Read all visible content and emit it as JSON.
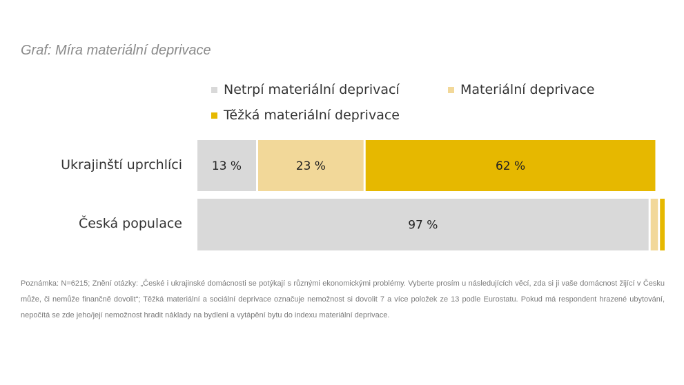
{
  "chart_data": {
    "type": "bar",
    "orientation": "horizontal",
    "stacked": true,
    "normalized": true,
    "title": "Graf: Míra materiální deprivace",
    "categories": [
      "Ukrajinští uprchlíci",
      "Česká populace"
    ],
    "series": [
      {
        "name": "Netrpí materiální deprivací",
        "values": [
          13,
          97
        ],
        "labels": [
          "13 %",
          "97 %"
        ],
        "color": "#d9d9d9"
      },
      {
        "name": "Materiální deprivace",
        "values": [
          23,
          2
        ],
        "labels": [
          "23 %",
          ""
        ],
        "color": "#f2d899"
      },
      {
        "name": "Těžká materiální deprivace",
        "values": [
          62,
          1
        ],
        "labels": [
          "62 %",
          ""
        ],
        "color": "#e6b800"
      }
    ],
    "xlim": [
      0,
      100
    ],
    "grid": false,
    "legend": "top"
  },
  "note": "Poznámka: N=6215; Znění otázky: „České i ukrajinské domácnosti se potýkají s různými ekonomickými problémy. Vyberte prosím u následujících věcí, zda si ji vaše domácnost žijící v Česku může, či nemůže finančně dovolit“; Těžká materiální a sociální deprivace označuje nemožnost si dovolit 7 a více položek ze 13 podle Eurostatu. Pokud má respondent hrazené ubytování, nepočítá se zde jeho/její nemožnost hradit náklady na bydlení a vytápění bytu do indexu materiální deprivace."
}
